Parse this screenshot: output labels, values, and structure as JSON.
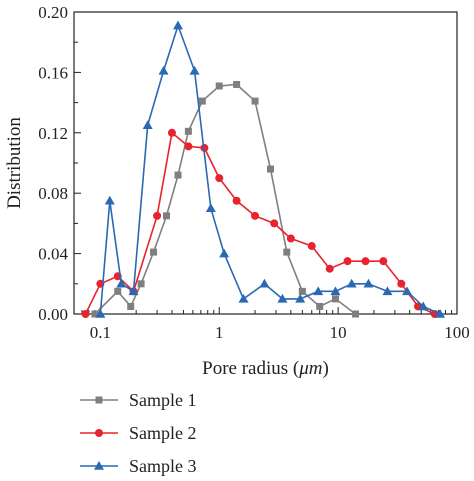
{
  "chart_data": {
    "type": "line",
    "title": "",
    "xlabel_prefix": "Pore radius (",
    "xlabel_unit": "μm",
    "xlabel_suffix": ")",
    "ylabel": "Distribution",
    "xscale": "log",
    "xlim": [
      0.06,
      100
    ],
    "ylim": [
      0,
      0.2
    ],
    "x_ticks": [
      0.1,
      1,
      10,
      100
    ],
    "x_tick_labels": [
      "0.1",
      "1",
      "10",
      "100"
    ],
    "y_ticks": [
      0,
      0.04,
      0.08,
      0.12,
      0.16,
      0.2
    ],
    "y_tick_labels": [
      "0.00",
      "0.04",
      "0.08",
      "0.12",
      "0.16",
      "0.20"
    ],
    "grid": false,
    "legend_position": "bottom",
    "series": [
      {
        "name": "Sample 1",
        "color": "#7f7f7f",
        "marker": "square",
        "x": [
          0.09,
          0.14,
          0.18,
          0.22,
          0.28,
          0.36,
          0.45,
          0.55,
          0.72,
          1.0,
          1.4,
          2.0,
          2.7,
          3.7,
          5.0,
          7.0,
          9.5,
          14.0
        ],
        "y": [
          0.0,
          0.015,
          0.005,
          0.02,
          0.041,
          0.065,
          0.092,
          0.121,
          0.141,
          0.151,
          0.152,
          0.141,
          0.096,
          0.041,
          0.015,
          0.005,
          0.01,
          0.0
        ]
      },
      {
        "name": "Sample 2",
        "color": "#e8232f",
        "marker": "circle",
        "x": [
          0.075,
          0.1,
          0.14,
          0.19,
          0.3,
          0.4,
          0.55,
          0.75,
          1.0,
          1.4,
          2.0,
          2.9,
          4.0,
          6.0,
          8.5,
          12.0,
          17.0,
          24.0,
          34.0,
          47.0,
          65.0
        ],
        "y": [
          0.0,
          0.02,
          0.025,
          0.015,
          0.065,
          0.12,
          0.111,
          0.11,
          0.09,
          0.075,
          0.065,
          0.06,
          0.05,
          0.045,
          0.03,
          0.035,
          0.035,
          0.035,
          0.02,
          0.005,
          0.0
        ]
      },
      {
        "name": "Sample 3",
        "color": "#2a69b3",
        "marker": "triangle",
        "x": [
          0.1,
          0.12,
          0.15,
          0.19,
          0.25,
          0.34,
          0.45,
          0.62,
          0.85,
          1.1,
          1.6,
          2.4,
          3.4,
          4.8,
          6.8,
          9.5,
          13.0,
          18.0,
          26.0,
          38.0,
          52.0,
          72.0
        ],
        "y": [
          0.0,
          0.075,
          0.02,
          0.015,
          0.125,
          0.161,
          0.191,
          0.161,
          0.07,
          0.04,
          0.01,
          0.02,
          0.01,
          0.01,
          0.015,
          0.015,
          0.02,
          0.02,
          0.015,
          0.015,
          0.005,
          0.0
        ]
      }
    ]
  }
}
